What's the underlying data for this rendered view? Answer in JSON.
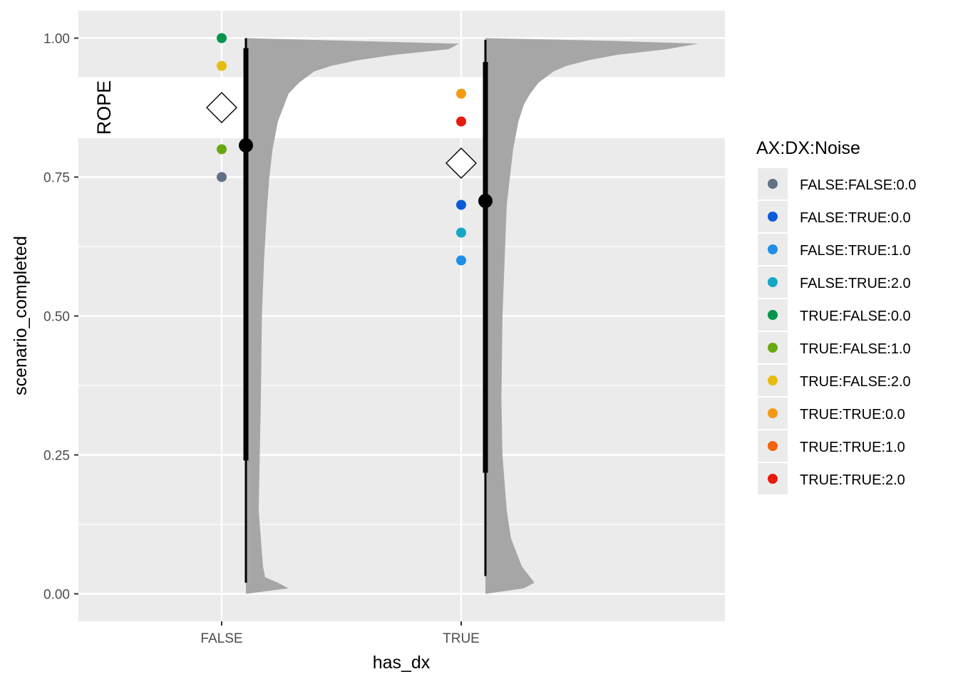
{
  "chart_data": {
    "type": "violin",
    "xlabel": "has_dx",
    "ylabel": "scenario_completed",
    "categories": [
      "FALSE",
      "TRUE"
    ],
    "ylim": [
      -0.05,
      1.05
    ],
    "y_ticks": [
      0.0,
      0.25,
      0.5,
      0.75,
      1.0
    ],
    "y_tick_labels": [
      "0.00",
      "0.25",
      "0.50",
      "0.75",
      "1.00"
    ],
    "grid": true,
    "rope": {
      "label": "ROPE",
      "ymin": 0.82,
      "ymax": 0.93,
      "color": "#ffffff"
    },
    "legend": {
      "title": "AX:DX:Noise",
      "position": "right",
      "entries": [
        {
          "label": "FALSE:FALSE:0.0",
          "color": "#627185"
        },
        {
          "label": "FALSE:TRUE:0.0",
          "color": "#0a5ad8"
        },
        {
          "label": "FALSE:TRUE:1.0",
          "color": "#1e8ee6"
        },
        {
          "label": "FALSE:TRUE:2.0",
          "color": "#14a8c4"
        },
        {
          "label": "TRUE:FALSE:0.0",
          "color": "#03954e"
        },
        {
          "label": "TRUE:FALSE:1.0",
          "color": "#6aa812"
        },
        {
          "label": "TRUE:FALSE:2.0",
          "color": "#e8bb10"
        },
        {
          "label": "TRUE:TRUE:0.0",
          "color": "#f49a12"
        },
        {
          "label": "TRUE:TRUE:1.0",
          "color": "#f2640a"
        },
        {
          "label": "TRUE:TRUE:2.0",
          "color": "#e51b0c"
        }
      ]
    },
    "points": [
      {
        "category": "FALSE",
        "group": "TRUE:FALSE:0.0",
        "y": 1.0
      },
      {
        "category": "FALSE",
        "group": "TRUE:FALSE:2.0",
        "y": 0.95
      },
      {
        "category": "FALSE",
        "group": "TRUE:FALSE:1.0",
        "y": 0.8
      },
      {
        "category": "FALSE",
        "group": "FALSE:FALSE:0.0",
        "y": 0.75
      },
      {
        "category": "TRUE",
        "group": "TRUE:TRUE:0.0",
        "y": 0.9
      },
      {
        "category": "TRUE",
        "group": "TRUE:TRUE:2.0",
        "y": 0.85
      },
      {
        "category": "TRUE",
        "group": "FALSE:TRUE:0.0",
        "y": 0.7
      },
      {
        "category": "TRUE",
        "group": "FALSE:TRUE:2.0",
        "y": 0.65
      },
      {
        "category": "TRUE",
        "group": "FALSE:TRUE:1.0",
        "y": 0.6
      }
    ],
    "means": [
      {
        "category": "FALSE",
        "y": 0.875
      },
      {
        "category": "TRUE",
        "y": 0.775
      }
    ],
    "posterior_intervals": [
      {
        "category": "FALSE",
        "median": 0.807,
        "inner": [
          0.24,
          0.982
        ],
        "outer": [
          0.02,
          1.0
        ]
      },
      {
        "category": "TRUE",
        "median": 0.707,
        "inner": [
          0.218,
          0.957
        ],
        "outer": [
          0.032,
          0.997
        ]
      }
    ],
    "densities": [
      {
        "category": "FALSE",
        "color": "#a6a6a6",
        "y": [
          0.0,
          0.01,
          0.02,
          0.03,
          0.05,
          0.1,
          0.15,
          0.25,
          0.35,
          0.5,
          0.6,
          0.7,
          0.75,
          0.8,
          0.85,
          0.88,
          0.9,
          0.92,
          0.94,
          0.95,
          0.96,
          0.97,
          0.98,
          0.99,
          0.995,
          1.0
        ],
        "density": [
          0.0,
          0.2,
          0.15,
          0.09,
          0.08,
          0.07,
          0.06,
          0.065,
          0.07,
          0.075,
          0.085,
          0.1,
          0.11,
          0.125,
          0.15,
          0.18,
          0.2,
          0.25,
          0.32,
          0.4,
          0.52,
          0.7,
          0.95,
          1.0,
          0.5,
          0.0
        ]
      },
      {
        "category": "TRUE",
        "color": "#a6a6a6",
        "y": [
          0.0,
          0.01,
          0.02,
          0.03,
          0.05,
          0.1,
          0.15,
          0.25,
          0.35,
          0.5,
          0.6,
          0.7,
          0.75,
          0.8,
          0.85,
          0.88,
          0.9,
          0.92,
          0.94,
          0.95,
          0.96,
          0.97,
          0.98,
          0.99,
          0.995,
          1.0
        ],
        "density": [
          0.0,
          0.18,
          0.23,
          0.21,
          0.17,
          0.12,
          0.1,
          0.08,
          0.075,
          0.08,
          0.09,
          0.1,
          0.115,
          0.13,
          0.155,
          0.18,
          0.21,
          0.25,
          0.32,
          0.38,
          0.48,
          0.62,
          0.85,
          1.0,
          0.6,
          0.0
        ]
      }
    ]
  }
}
